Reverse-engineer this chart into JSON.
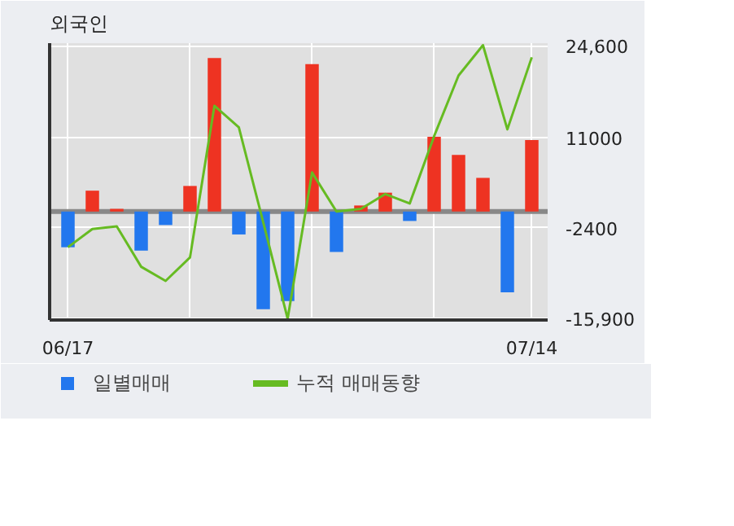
{
  "chart_data": {
    "type": "bar",
    "title": "외국인",
    "categories": [
      "06/17",
      null,
      null,
      null,
      null,
      null,
      null,
      null,
      null,
      null,
      null,
      null,
      null,
      null,
      null,
      null,
      null,
      null,
      null,
      "07/14"
    ],
    "series": [
      {
        "name": "일별매매",
        "colors": [
          "#2277ee",
          "#ee3322",
          "#ee3322",
          "#2277ee",
          "#2277ee",
          "#ee3322",
          "#ee3322",
          "#2277ee",
          "#2277ee",
          "#2277ee",
          "#ee3322",
          "#2277ee",
          "#ee3322",
          "#ee3322",
          "#2277ee",
          "#ee3322",
          "#ee3322",
          "#ee3322",
          "#2277ee",
          "#ee3322"
        ],
        "values": [
          -5300,
          3100,
          400,
          -5800,
          -2000,
          3800,
          22800,
          -3400,
          -14500,
          -13300,
          21900,
          -6000,
          900,
          2800,
          -1400,
          11100,
          8400,
          5000,
          -12000,
          10600
        ]
      },
      {
        "name": "누적 매매동향",
        "type": "line",
        "color": "#66bb22",
        "values": [
          -5300,
          -2600,
          -2200,
          -8200,
          -10300,
          -6800,
          15700,
          12500,
          -1600,
          -15900,
          5800,
          0,
          400,
          2600,
          1200,
          11200,
          20200,
          24700,
          12200,
          22900
        ]
      }
    ],
    "ylim": [
      -16100,
      25000
    ],
    "yticks": [
      {
        "value": 24600,
        "label": "24,600"
      },
      11000,
      -2400,
      {
        "value": -15900,
        "label": "-15,900"
      }
    ],
    "ref_lines": [
      {
        "axis": "y",
        "value": 0,
        "color": "#888888"
      }
    ],
    "grid": true,
    "legend": "bottom"
  }
}
